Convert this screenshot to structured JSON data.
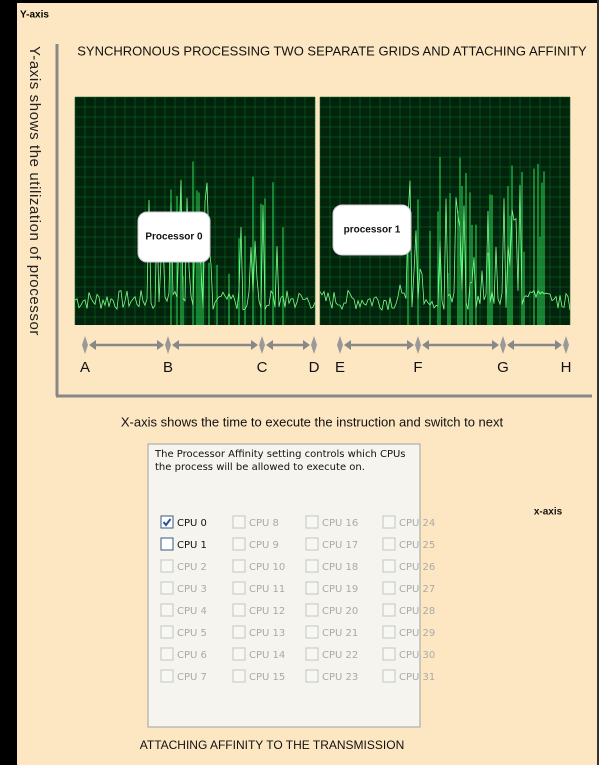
{
  "header": {
    "corner_label": "Y-axis",
    "title": "SYNCHRONOUS PROCESSING TWO SEPARATE GRIDS AND ATTACHING AFFINITY"
  },
  "y_axis_label": "Y-axis shows the utilization of processor",
  "panels": [
    {
      "label": "Processor 0"
    },
    {
      "label": "processor 1"
    }
  ],
  "timeline": [
    "A",
    "B",
    "C",
    "D",
    "E",
    "F",
    "G",
    "H"
  ],
  "x_axis_caption": "X-axis shows the time to execute the instruction and switch to next",
  "x_axis_label": "x-axis",
  "dialog": {
    "description": "The Processor Affinity setting controls which CPUs the process will be allowed to execute on.",
    "cpus": [
      {
        "label": "CPU 0",
        "checked": true,
        "enabled": true
      },
      {
        "label": "CPU 1",
        "checked": false,
        "enabled": true
      },
      {
        "label": "CPU 2",
        "checked": false,
        "enabled": false
      },
      {
        "label": "CPU 3",
        "checked": false,
        "enabled": false
      },
      {
        "label": "CPU 4",
        "checked": false,
        "enabled": false
      },
      {
        "label": "CPU 5",
        "checked": false,
        "enabled": false
      },
      {
        "label": "CPU 6",
        "checked": false,
        "enabled": false
      },
      {
        "label": "CPU 7",
        "checked": false,
        "enabled": false
      },
      {
        "label": "CPU 8",
        "checked": false,
        "enabled": false
      },
      {
        "label": "CPU 9",
        "checked": false,
        "enabled": false
      },
      {
        "label": "CPU 10",
        "checked": false,
        "enabled": false
      },
      {
        "label": "CPU 11",
        "checked": false,
        "enabled": false
      },
      {
        "label": "CPU 12",
        "checked": false,
        "enabled": false
      },
      {
        "label": "CPU 13",
        "checked": false,
        "enabled": false
      },
      {
        "label": "CPU 14",
        "checked": false,
        "enabled": false
      },
      {
        "label": "CPU 15",
        "checked": false,
        "enabled": false
      },
      {
        "label": "CPU 16",
        "checked": false,
        "enabled": false
      },
      {
        "label": "CPU 17",
        "checked": false,
        "enabled": false
      },
      {
        "label": "CPU 18",
        "checked": false,
        "enabled": false
      },
      {
        "label": "CPU 19",
        "checked": false,
        "enabled": false
      },
      {
        "label": "CPU 20",
        "checked": false,
        "enabled": false
      },
      {
        "label": "CPU 21",
        "checked": false,
        "enabled": false
      },
      {
        "label": "CPU 22",
        "checked": false,
        "enabled": false
      },
      {
        "label": "CPU 23",
        "checked": false,
        "enabled": false
      },
      {
        "label": "CPU 24",
        "checked": false,
        "enabled": false
      },
      {
        "label": "CPU 25",
        "checked": false,
        "enabled": false
      },
      {
        "label": "CPU 26",
        "checked": false,
        "enabled": false
      },
      {
        "label": "CPU 27",
        "checked": false,
        "enabled": false
      },
      {
        "label": "CPU 28",
        "checked": false,
        "enabled": false
      },
      {
        "label": "CPU 29",
        "checked": false,
        "enabled": false
      },
      {
        "label": "CPU 30",
        "checked": false,
        "enabled": false
      },
      {
        "label": "CPU 31",
        "checked": false,
        "enabled": false
      }
    ]
  },
  "footer": "ATTACHING AFFINITY TO THE TRANSMISSION"
}
